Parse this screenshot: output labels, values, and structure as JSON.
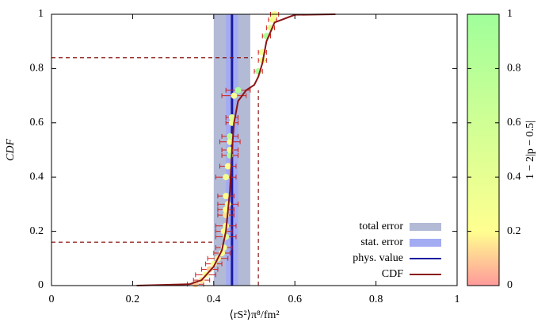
{
  "chart_data": {
    "type": "scatter",
    "xlabel": "⟨rS²⟩π⁸/fm²",
    "ylabel": "CDF",
    "xlim": [
      0,
      1
    ],
    "ylim": [
      0,
      1
    ],
    "xticks": [
      0,
      0.2,
      0.4,
      0.6,
      0.8,
      1
    ],
    "yticks": [
      0,
      0.2,
      0.4,
      0.6,
      0.8,
      1
    ],
    "bands": [
      {
        "name": "total error",
        "color": "#b2bad6",
        "x": [
          0.4,
          0.49
        ]
      },
      {
        "name": "stat. error",
        "color": "#a3abf2",
        "x": [
          0.43,
          0.46
        ]
      }
    ],
    "value_line": {
      "name": "phys. value",
      "color": "#1a1aa0",
      "x": 0.445
    },
    "cdf": {
      "name": "CDF",
      "color": "#8b1414",
      "x": [
        0.21,
        0.34,
        0.37,
        0.4,
        0.42,
        0.43,
        0.44,
        0.445,
        0.45,
        0.46,
        0.48,
        0.5,
        0.51,
        0.52,
        0.53,
        0.55,
        0.6,
        0.7
      ],
      "y": [
        0,
        0.005,
        0.02,
        0.07,
        0.13,
        0.2,
        0.35,
        0.5,
        0.6,
        0.68,
        0.72,
        0.74,
        0.77,
        0.82,
        0.9,
        0.97,
        0.998,
        1
      ]
    },
    "guides": [
      {
        "x": [
          0,
          0.4
        ],
        "y": [
          0.16,
          0.16
        ]
      },
      {
        "x": [
          0,
          0.495
        ],
        "y": [
          0.84,
          0.84
        ]
      },
      {
        "x": [
          0.51,
          0.51
        ],
        "y": [
          0,
          0.72
        ]
      }
    ],
    "points": {
      "error_color": "#d02020",
      "x": [
        0.355,
        0.37,
        0.38,
        0.39,
        0.4,
        0.41,
        0.42,
        0.425,
        0.43,
        0.425,
        0.43,
        0.43,
        0.43,
        0.435,
        0.43,
        0.43,
        0.435,
        0.44,
        0.44,
        0.44,
        0.44,
        0.445,
        0.445,
        0.45,
        0.46,
        0.51,
        0.52,
        0.52,
        0.53,
        0.54,
        0.545,
        0.55
      ],
      "y": [
        0.005,
        0.02,
        0.04,
        0.06,
        0.08,
        0.1,
        0.12,
        0.14,
        0.18,
        0.2,
        0.22,
        0.26,
        0.28,
        0.3,
        0.33,
        0.4,
        0.44,
        0.48,
        0.5,
        0.53,
        0.55,
        0.6,
        0.62,
        0.7,
        0.72,
        0.79,
        0.83,
        0.86,
        0.92,
        0.95,
        0.98,
        1
      ],
      "xerr": [
        0.02,
        0.02,
        0.025,
        0.02,
        0.02,
        0.025,
        0.02,
        0.02,
        0.025,
        0.02,
        0.025,
        0.02,
        0.02,
        0.025,
        0.02,
        0.025,
        0.02,
        0.02,
        0.02,
        0.025,
        0.02,
        0.015,
        0.015,
        0.03,
        0.03,
        0.01,
        0.01,
        0.01,
        0.01,
        0.01,
        0.01,
        0.01
      ],
      "c": [
        0.1,
        0.15,
        0.2,
        0.1,
        0.25,
        0.15,
        0.2,
        0.3,
        0.5,
        0.2,
        0.3,
        0.15,
        0.2,
        0.3,
        0.25,
        0.3,
        0.2,
        0.9,
        0.4,
        0.3,
        0.8,
        0.3,
        0.5,
        0.25,
        0.9,
        0.9,
        0.4,
        0.3,
        0.9,
        0.5,
        0.3,
        0.2
      ]
    },
    "colorbar": {
      "label": "1 − 2|p − 0.5|",
      "lim": [
        0,
        1
      ],
      "ticks": [
        0,
        0.2,
        0.4,
        0.6,
        0.8,
        1
      ],
      "colors": [
        "#ff9a9a",
        "#ffff90",
        "#a0ff9a"
      ],
      "stops": [
        0,
        0.2,
        1
      ]
    },
    "legend": "lower right"
  }
}
